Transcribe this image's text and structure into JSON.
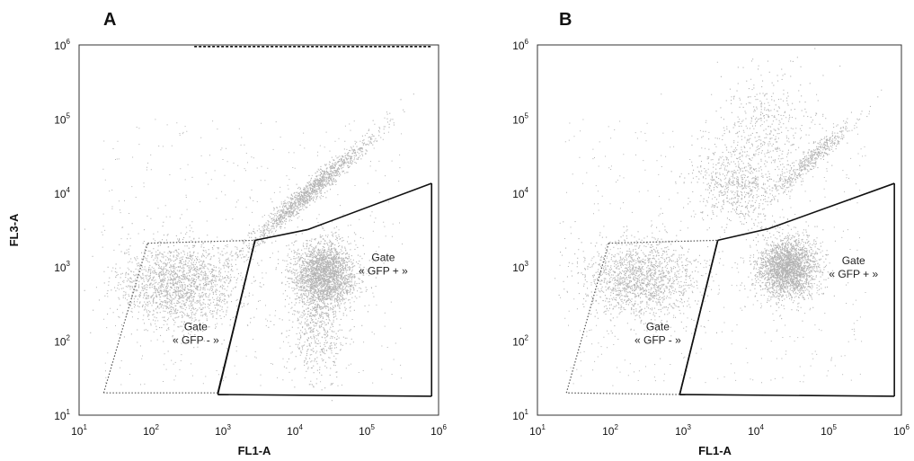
{
  "chart_data": [
    {
      "type": "scatter",
      "panel_label": "A",
      "xlabel": "FL1-A",
      "ylabel": "FL3-A",
      "x_scale": "log",
      "y_scale": "log",
      "xlim": [
        10,
        1000000
      ],
      "ylim": [
        10,
        1000000
      ],
      "x_ticks": [
        {
          "base": "10",
          "exp": "1"
        },
        {
          "base": "10",
          "exp": "2"
        },
        {
          "base": "10",
          "exp": "3"
        },
        {
          "base": "10",
          "exp": "4"
        },
        {
          "base": "10",
          "exp": "5"
        },
        {
          "base": "10",
          "exp": "6"
        }
      ],
      "y_ticks": [
        {
          "base": "10",
          "exp": "1"
        },
        {
          "base": "10",
          "exp": "2"
        },
        {
          "base": "10",
          "exp": "3"
        },
        {
          "base": "10",
          "exp": "4"
        },
        {
          "base": "10",
          "exp": "5"
        },
        {
          "base": "10",
          "exp": "6"
        }
      ],
      "top_dashed_line": {
        "x": [
          400,
          800000
        ],
        "y": 950000
      },
      "clusters": [
        {
          "cx": 250,
          "cy": 600,
          "sx": 0.42,
          "sy": 0.28,
          "n": 1800
        },
        {
          "cx": 25000,
          "cy": 800,
          "sx": 0.22,
          "sy": 0.22,
          "n": 2400
        },
        {
          "cx": 15000,
          "cy": 10000,
          "sx": 0.45,
          "sy": 0.35,
          "n": 1400,
          "diagonal": true
        },
        {
          "cx": 20000,
          "cy": 150,
          "sx": 0.18,
          "sy": 0.35,
          "n": 500
        }
      ],
      "gates": [
        {
          "name": "GFP-",
          "label_lines": [
            "Gate",
            "« GFP - »"
          ],
          "label_at": [
            420,
            140
          ],
          "vertices": [
            [
              22,
              20
            ],
            [
              90,
              2100
            ],
            [
              2800,
              2300
            ],
            [
              850,
              20
            ]
          ],
          "dotted_edges": [
            0,
            1,
            3
          ]
        },
        {
          "name": "GFP+",
          "label_lines": [
            "Gate",
            "« GFP + »"
          ],
          "label_at": [
            170000,
            1200
          ],
          "vertices": [
            [
              850,
              19
            ],
            [
              2800,
              2300
            ],
            [
              15000,
              3200
            ],
            [
              800000,
              13500
            ],
            [
              800000,
              18
            ]
          ],
          "dotted_edges": []
        }
      ]
    },
    {
      "type": "scatter",
      "panel_label": "B",
      "xlabel": "FL1-A",
      "ylabel": "",
      "x_scale": "log",
      "y_scale": "log",
      "xlim": [
        10,
        1000000
      ],
      "ylim": [
        10,
        1000000
      ],
      "x_ticks": [
        {
          "base": "10",
          "exp": "1"
        },
        {
          "base": "10",
          "exp": "2"
        },
        {
          "base": "10",
          "exp": "3"
        },
        {
          "base": "10",
          "exp": "4"
        },
        {
          "base": "10",
          "exp": "5"
        },
        {
          "base": "10",
          "exp": "6"
        }
      ],
      "y_ticks": [
        {
          "base": "10",
          "exp": "1"
        },
        {
          "base": "10",
          "exp": "2"
        },
        {
          "base": "10",
          "exp": "3"
        },
        {
          "base": "10",
          "exp": "4"
        },
        {
          "base": "10",
          "exp": "5"
        },
        {
          "base": "10",
          "exp": "6"
        }
      ],
      "clusters": [
        {
          "cx": 250,
          "cy": 700,
          "sx": 0.4,
          "sy": 0.27,
          "n": 1500
        },
        {
          "cx": 27000,
          "cy": 1000,
          "sx": 0.2,
          "sy": 0.2,
          "n": 2400
        },
        {
          "cx": 6000,
          "cy": 15000,
          "sx": 0.3,
          "sy": 0.3,
          "n": 700
        },
        {
          "cx": 60000,
          "cy": 30000,
          "sx": 0.3,
          "sy": 0.3,
          "n": 500,
          "diagonal": true
        },
        {
          "cx": 15000,
          "cy": 100000,
          "sx": 0.35,
          "sy": 0.35,
          "n": 350
        }
      ],
      "gates": [
        {
          "name": "GFP-",
          "label_lines": [
            "Gate",
            "« GFP - »"
          ],
          "label_at": [
            450,
            140
          ],
          "vertices": [
            [
              25,
              20
            ],
            [
              95,
              2100
            ],
            [
              3000,
              2300
            ],
            [
              900,
              19
            ]
          ],
          "dotted_edges": [
            0,
            1,
            3
          ]
        },
        {
          "name": "GFP+",
          "label_lines": [
            "Gate",
            "« GFP + »"
          ],
          "label_at": [
            220000,
            1100
          ],
          "vertices": [
            [
              900,
              19
            ],
            [
              3000,
              2300
            ],
            [
              15000,
              3300
            ],
            [
              800000,
              13500
            ],
            [
              800000,
              18
            ]
          ],
          "dotted_edges": []
        }
      ]
    }
  ]
}
